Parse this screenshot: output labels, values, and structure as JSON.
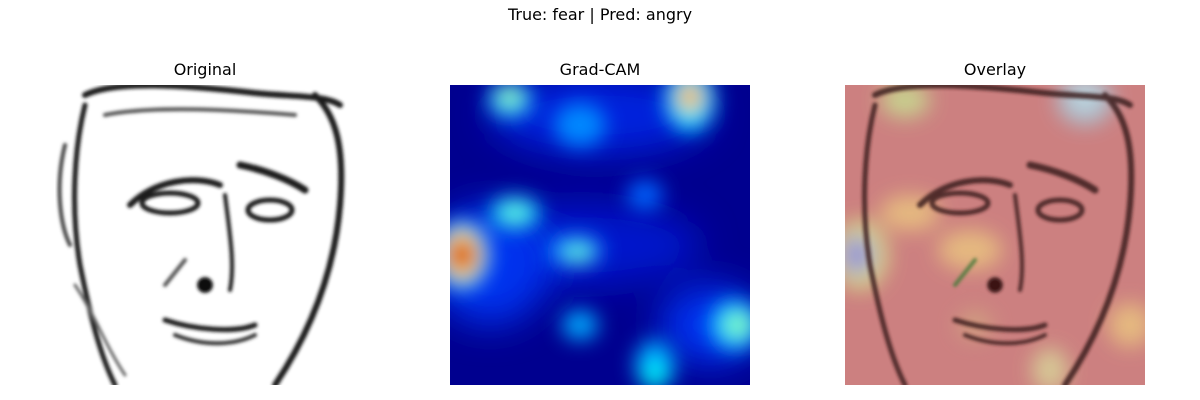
{
  "figure": {
    "suptitle": "True: fear | Pred: angry"
  },
  "panels": [
    {
      "id": "original",
      "title": "Original",
      "image": "grayscale-face-sketch"
    },
    {
      "id": "gradcam",
      "title": "Grad-CAM",
      "image": "jet-colormap-heatmap"
    },
    {
      "id": "overlay",
      "title": "Overlay",
      "image": "face-with-heatmap-overlay"
    }
  ],
  "colors": {
    "heat_low": "#00008f",
    "heat_mid": "#00ffff",
    "heat_high": "#ff0000",
    "overlay_tint": "#cc8080"
  }
}
